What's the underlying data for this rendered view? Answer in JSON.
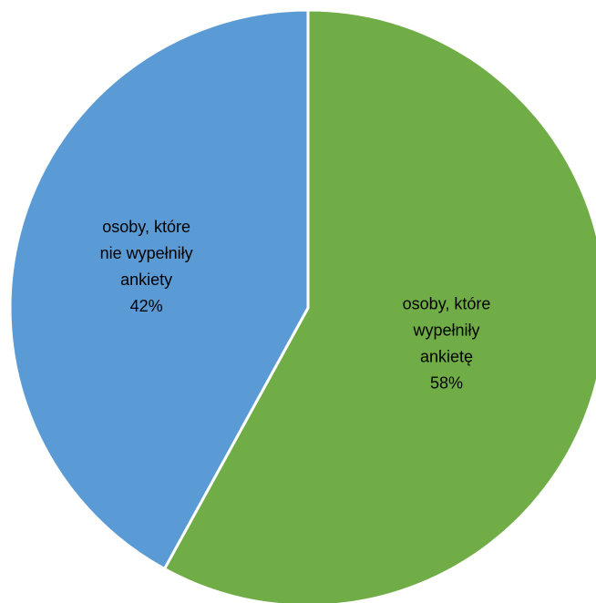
{
  "chart_data": {
    "type": "pie",
    "start_angle_deg": 0,
    "direction": "clockwise",
    "slices": [
      {
        "label_lines": [
          "osoby, które",
          "wypełniły",
          "ankietę"
        ],
        "percent_label": "58%",
        "value": 58,
        "color": "#70ad47"
      },
      {
        "label_lines": [
          "osoby, które",
          "nie wypełniły",
          "ankiety"
        ],
        "percent_label": "42%",
        "value": 42,
        "color": "#5b9bd5"
      }
    ],
    "slice_border_color": "#ffffff",
    "legend": "none",
    "title": ""
  }
}
